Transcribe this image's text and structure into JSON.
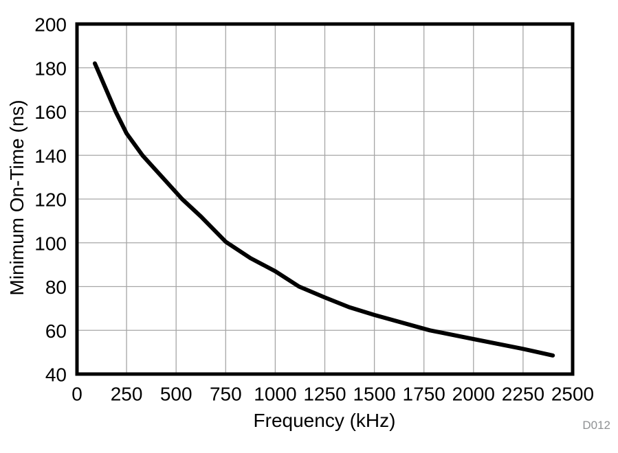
{
  "figure_label": "D012",
  "colors": {
    "curve": "#000000",
    "frame": "#000000",
    "grid": "#a6a6a6",
    "tick_text": "#000000",
    "figure_label_text": "#8f9193",
    "background": "#ffffff"
  },
  "chart_data": {
    "type": "line",
    "title": "",
    "xlabel": "Frequency (kHz)",
    "ylabel": "Minimum On-Time (ns)",
    "xlim": [
      0,
      2500
    ],
    "ylim": [
      40,
      200
    ],
    "x_ticks": [
      0,
      250,
      500,
      750,
      1000,
      1250,
      1500,
      1750,
      2000,
      2250,
      2500
    ],
    "y_ticks": [
      40,
      60,
      80,
      100,
      120,
      140,
      160,
      180,
      200
    ],
    "grid": true,
    "legend": false,
    "series": [
      {
        "name": "Minimum On-Time",
        "x": [
          90,
          100,
          195,
          250,
          330,
          400,
          530,
          625,
          750,
          875,
          1000,
          1120,
          1250,
          1375,
          1500,
          1780,
          2000,
          2250,
          2400
        ],
        "y": [
          182,
          180,
          160,
          150,
          140,
          133,
          120,
          112,
          100.5,
          93,
          87,
          80,
          75,
          70.5,
          67,
          60,
          56,
          51.5,
          48.5
        ]
      }
    ]
  }
}
